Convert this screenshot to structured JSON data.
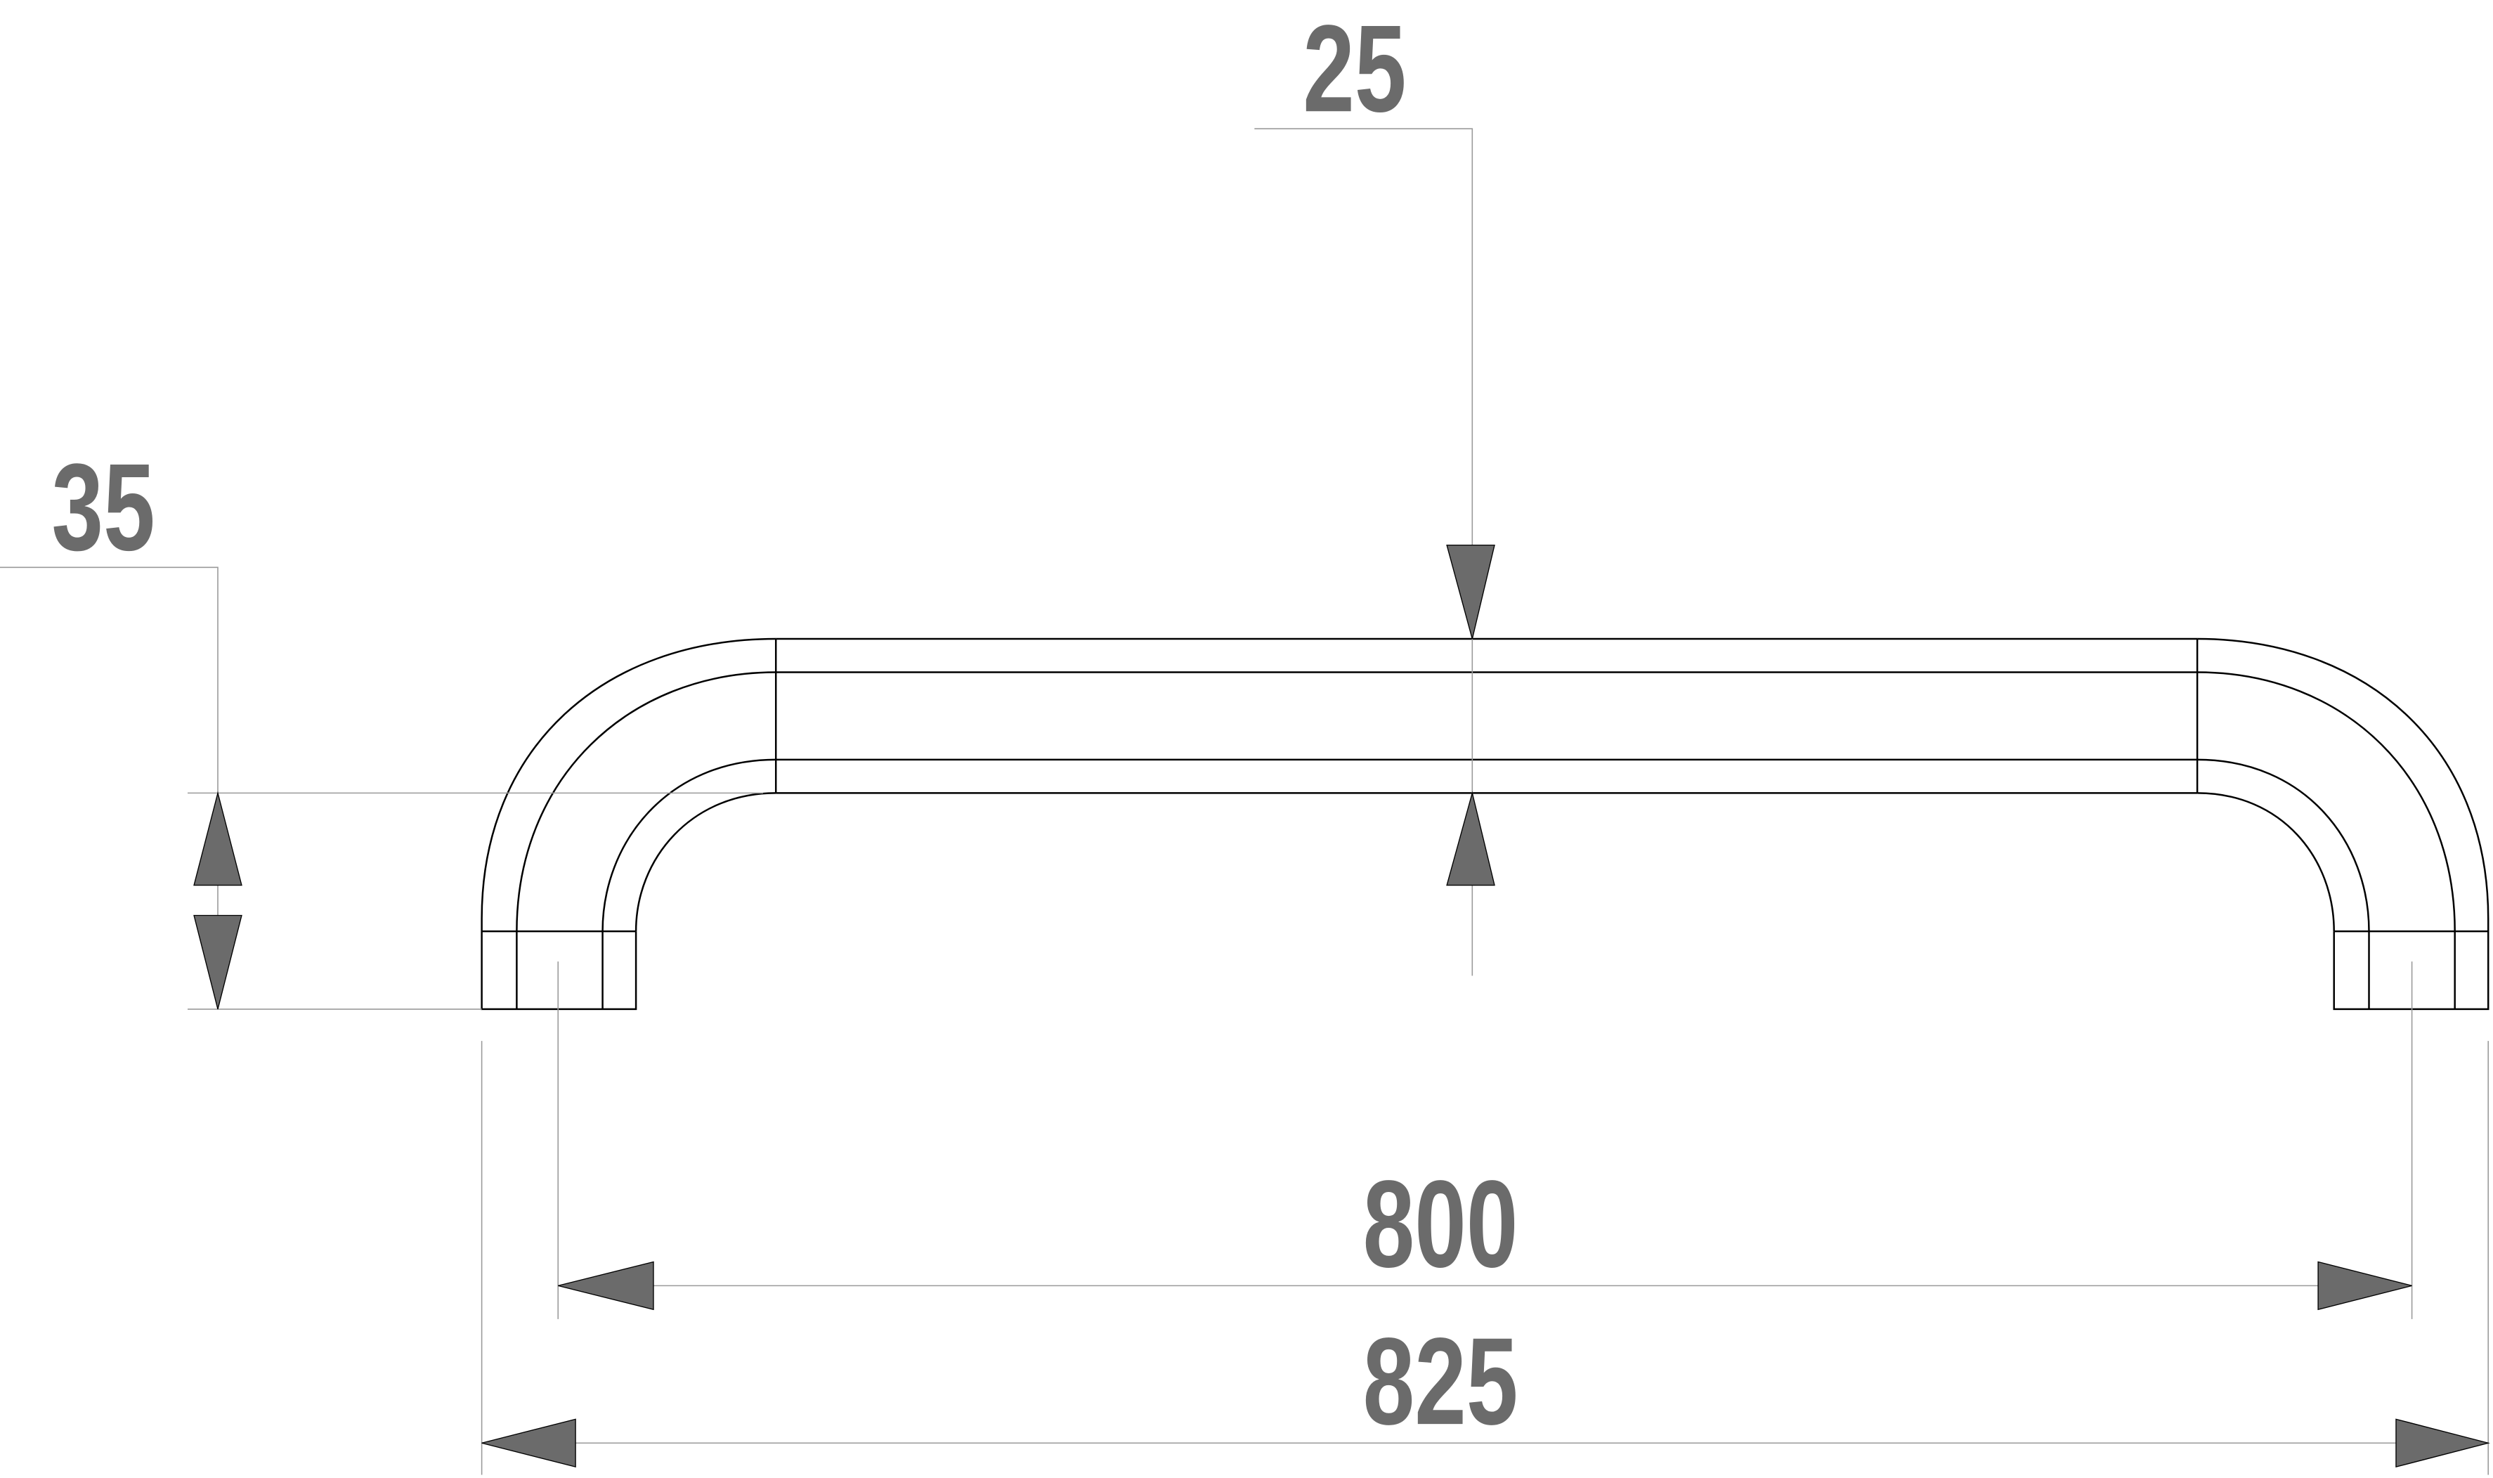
{
  "drawing": {
    "dimensions": {
      "thickness": "25",
      "height": "35",
      "hole_spacing": "800",
      "overall_length": "825"
    },
    "colors": {
      "dimension_text": "#6b6b6b",
      "outline": "#000000",
      "extension_line": "#9a9a9a"
    }
  }
}
